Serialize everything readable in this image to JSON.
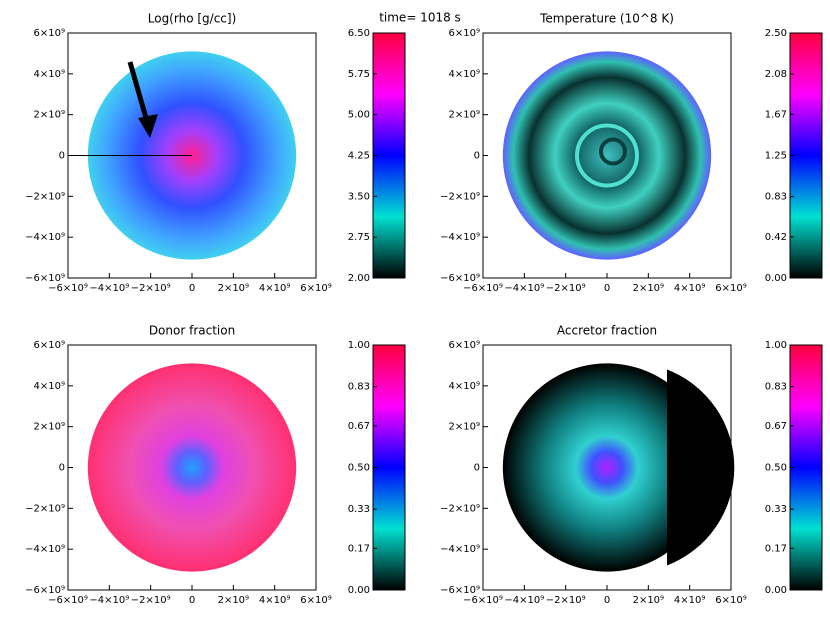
{
  "title": "time= 1018 s",
  "chart_data": [
    {
      "type": "heatmap",
      "title": "Log(rho [g/cc])",
      "xlim": [
        -6000000000,
        6000000000
      ],
      "ylim": [
        -6000000000,
        6000000000
      ],
      "xticks": [
        {
          "value": -6000000000,
          "label": "−6×10⁹"
        },
        {
          "value": -4000000000,
          "label": "−4×10⁹"
        },
        {
          "value": -2000000000,
          "label": "−2×10⁹"
        },
        0,
        {
          "value": 2000000000,
          "label": "2×10⁹"
        },
        {
          "value": 4000000000,
          "label": "4×10⁹"
        },
        {
          "value": 6000000000,
          "label": "6×10⁹"
        }
      ],
      "yticks": [
        {
          "value": -6000000000,
          "label": "−6×10⁹"
        },
        {
          "value": -4000000000,
          "label": "−4×10⁹"
        },
        {
          "value": -2000000000,
          "label": "−2×10⁹"
        },
        0,
        {
          "value": 2000000000,
          "label": "2×10⁹"
        },
        {
          "value": 4000000000,
          "label": "4×10⁹"
        },
        {
          "value": 6000000000,
          "label": "6×10⁹"
        }
      ],
      "colorbar_lim": [
        2,
        6.5
      ],
      "colorbar_ticks": [
        {
          "value": 2,
          "label": "2.00"
        },
        {
          "value": 2.75,
          "label": "2.75"
        },
        {
          "value": 3.5,
          "label": "3.50"
        },
        {
          "value": 4.25,
          "label": "4.25"
        },
        {
          "value": 5,
          "label": "5.00"
        },
        {
          "value": 5.75,
          "label": "5.75"
        },
        {
          "value": 6.5,
          "label": "6.50"
        }
      ],
      "colormap": [
        "#000000",
        "#00e0d0",
        "#0000ff",
        "#ff00ff",
        "#ff0040"
      ]
    },
    {
      "type": "heatmap",
      "title": "Temperature (10^8 K)",
      "xlim": [
        -6000000000,
        6000000000
      ],
      "ylim": [
        -6000000000,
        6000000000
      ],
      "xticks": [
        {
          "value": -6000000000,
          "label": "−6×10⁹"
        },
        {
          "value": -4000000000,
          "label": "−4×10⁹"
        },
        {
          "value": -2000000000,
          "label": "−2×10⁹"
        },
        0,
        {
          "value": 2000000000,
          "label": "2×10⁹"
        },
        {
          "value": 4000000000,
          "label": "4×10⁹"
        },
        {
          "value": 6000000000,
          "label": "6×10⁹"
        }
      ],
      "yticks": [
        {
          "value": -6000000000,
          "label": "−6×10⁹"
        },
        {
          "value": -4000000000,
          "label": "−4×10⁹"
        },
        {
          "value": -2000000000,
          "label": "−2×10⁹"
        },
        0,
        {
          "value": 2000000000,
          "label": "2×10⁹"
        },
        {
          "value": 4000000000,
          "label": "4×10⁹"
        },
        {
          "value": 6000000000,
          "label": "6×10⁹"
        }
      ],
      "colorbar_lim": [
        0,
        2.5
      ],
      "colorbar_ticks": [
        {
          "value": 0,
          "label": "0.00"
        },
        {
          "value": 0.42,
          "label": "0.42"
        },
        {
          "value": 0.83,
          "label": "0.83"
        },
        {
          "value": 1.25,
          "label": "1.25"
        },
        {
          "value": 1.67,
          "label": "1.67"
        },
        {
          "value": 2.08,
          "label": "2.08"
        },
        {
          "value": 2.5,
          "label": "2.50"
        }
      ],
      "colormap": [
        "#000000",
        "#00e0d0",
        "#0000ff",
        "#ff00ff",
        "#ff0040"
      ]
    },
    {
      "type": "heatmap",
      "title": "Donor fraction",
      "xlim": [
        -6000000000,
        6000000000
      ],
      "ylim": [
        -6000000000,
        6000000000
      ],
      "xticks": [
        {
          "value": -6000000000,
          "label": "−6×10⁹"
        },
        {
          "value": -4000000000,
          "label": "−4×10⁹"
        },
        {
          "value": -2000000000,
          "label": "−2×10⁹"
        },
        0,
        {
          "value": 2000000000,
          "label": "2×10⁹"
        },
        {
          "value": 4000000000,
          "label": "4×10⁹"
        },
        {
          "value": 6000000000,
          "label": "6×10⁹"
        }
      ],
      "yticks": [
        {
          "value": -6000000000,
          "label": "−6×10⁹"
        },
        {
          "value": -4000000000,
          "label": "−4×10⁹"
        },
        {
          "value": -2000000000,
          "label": "−2×10⁹"
        },
        0,
        {
          "value": 2000000000,
          "label": "2×10⁹"
        },
        {
          "value": 4000000000,
          "label": "4×10⁹"
        },
        {
          "value": 6000000000,
          "label": "6×10⁹"
        }
      ],
      "colorbar_lim": [
        0,
        1
      ],
      "colorbar_ticks": [
        {
          "value": 0,
          "label": "0.00"
        },
        {
          "value": 0.17,
          "label": "0.17"
        },
        {
          "value": 0.33,
          "label": "0.33"
        },
        {
          "value": 0.5,
          "label": "0.50"
        },
        {
          "value": 0.67,
          "label": "0.67"
        },
        {
          "value": 0.83,
          "label": "0.83"
        },
        {
          "value": 1,
          "label": "1.00"
        }
      ],
      "colormap": [
        "#000000",
        "#00e0d0",
        "#0000ff",
        "#ff00ff",
        "#ff0040"
      ]
    },
    {
      "type": "heatmap",
      "title": "Accretor fraction",
      "xlim": [
        -6000000000,
        6000000000
      ],
      "ylim": [
        -6000000000,
        6000000000
      ],
      "xticks": [
        {
          "value": -6000000000,
          "label": "−6×10⁹"
        },
        {
          "value": -4000000000,
          "label": "−4×10⁹"
        },
        {
          "value": -2000000000,
          "label": "−2×10⁹"
        },
        0,
        {
          "value": 2000000000,
          "label": "2×10⁹"
        },
        {
          "value": 4000000000,
          "label": "4×10⁹"
        },
        {
          "value": 6000000000,
          "label": "6×10⁹"
        }
      ],
      "yticks": [
        {
          "value": -6000000000,
          "label": "−6×10⁹"
        },
        {
          "value": -4000000000,
          "label": "−4×10⁹"
        },
        {
          "value": -2000000000,
          "label": "−2×10⁹"
        },
        0,
        {
          "value": 2000000000,
          "label": "2×10⁹"
        },
        {
          "value": 4000000000,
          "label": "4×10⁹"
        },
        {
          "value": 6000000000,
          "label": "6×10⁹"
        }
      ],
      "colorbar_lim": [
        0,
        1
      ],
      "colorbar_ticks": [
        {
          "value": 0,
          "label": "0.00"
        },
        {
          "value": 0.17,
          "label": "0.17"
        },
        {
          "value": 0.33,
          "label": "0.33"
        },
        {
          "value": 0.5,
          "label": "0.50"
        },
        {
          "value": 0.67,
          "label": "0.67"
        },
        {
          "value": 0.83,
          "label": "0.83"
        },
        {
          "value": 1,
          "label": "1.00"
        }
      ],
      "colormap": [
        "#000000",
        "#00e0d0",
        "#0000ff",
        "#ff00ff",
        "#ff0040"
      ]
    }
  ]
}
